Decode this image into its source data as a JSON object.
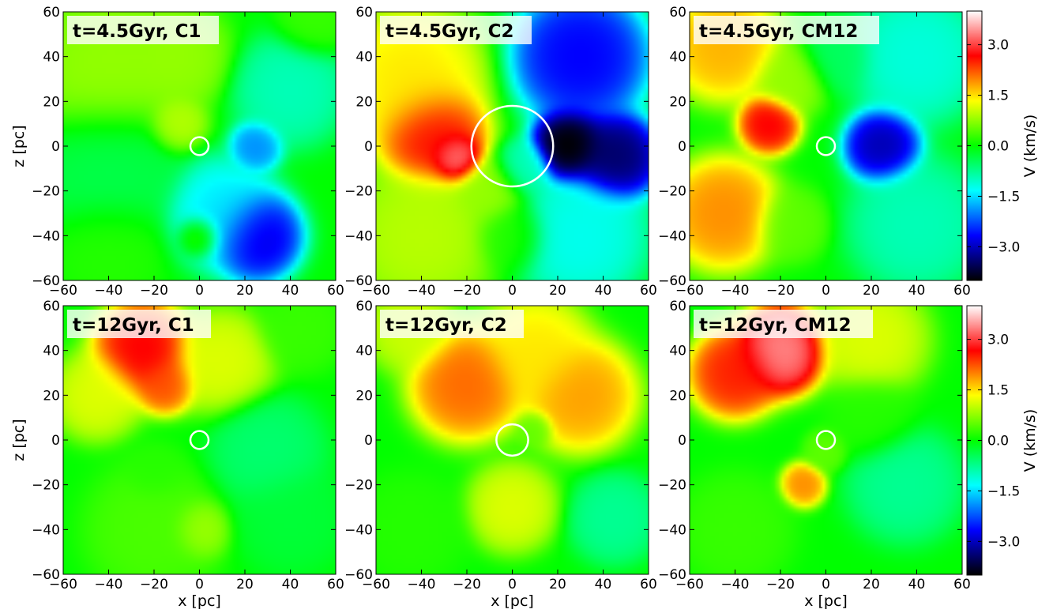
{
  "chart_data": [
    {
      "type": "heatmap",
      "title": "t=4.5Gyr, C1",
      "xlabel": "",
      "ylabel": "z [pc]",
      "xlim": [
        -60,
        60
      ],
      "ylim": [
        -60,
        60
      ],
      "x_ticks": [
        -60,
        -40,
        -20,
        0,
        20,
        40,
        60
      ],
      "y_ticks": [
        -60,
        -40,
        -20,
        0,
        20,
        40,
        60
      ],
      "circle": {
        "x": 0,
        "z": 0,
        "r": 4
      },
      "blobs": [
        {
          "x": -40,
          "z": 35,
          "v": 0.8,
          "s": 22
        },
        {
          "x": -10,
          "z": 40,
          "v": 0.8,
          "s": 14
        },
        {
          "x": -10,
          "z": 10,
          "v": 1.0,
          "s": 8
        },
        {
          "x": -40,
          "z": -10,
          "v": -0.4,
          "s": 20
        },
        {
          "x": 40,
          "z": 25,
          "v": -1.0,
          "s": 15
        },
        {
          "x": 25,
          "z": 0,
          "v": -2.0,
          "s": 7
        },
        {
          "x": 25,
          "z": -40,
          "v": -3.0,
          "s": 12
        },
        {
          "x": 10,
          "z": -30,
          "v": -1.5,
          "s": 15
        },
        {
          "x": 0,
          "z": -40,
          "v": 0.6,
          "s": 6
        },
        {
          "x": 50,
          "z": 55,
          "v": 0.3,
          "s": 10
        },
        {
          "x": -40,
          "z": -45,
          "v": 0.2,
          "s": 15
        }
      ]
    },
    {
      "type": "heatmap",
      "title": "t=4.5Gyr, C2",
      "xlabel": "",
      "ylabel": "",
      "xlim": [
        -60,
        60
      ],
      "ylim": [
        -60,
        60
      ],
      "x_ticks": [
        -60,
        -40,
        -20,
        0,
        20,
        40,
        60
      ],
      "y_ticks": [
        -60,
        -40,
        -20,
        0,
        20,
        40,
        60
      ],
      "circle": {
        "x": 0,
        "z": 0,
        "r": 18
      },
      "blobs": [
        {
          "x": -45,
          "z": 30,
          "v": 1.5,
          "s": 20
        },
        {
          "x": -35,
          "z": 5,
          "v": 2.8,
          "s": 14
        },
        {
          "x": -25,
          "z": -5,
          "v": 3.5,
          "s": 7
        },
        {
          "x": -40,
          "z": -40,
          "v": 1.0,
          "s": 20
        },
        {
          "x": -10,
          "z": -20,
          "v": 0.8,
          "s": 10
        },
        {
          "x": 0,
          "z": -40,
          "v": 0.2,
          "s": 10
        },
        {
          "x": 30,
          "z": 40,
          "v": -2.8,
          "s": 18
        },
        {
          "x": 25,
          "z": 0,
          "v": -4.2,
          "s": 10
        },
        {
          "x": 45,
          "z": -5,
          "v": -3.6,
          "s": 12
        },
        {
          "x": 30,
          "z": -40,
          "v": -1.3,
          "s": 18
        },
        {
          "x": 5,
          "z": -10,
          "v": -1.0,
          "s": 8
        }
      ]
    },
    {
      "type": "heatmap",
      "title": "t=4.5Gyr, CM12",
      "xlabel": "",
      "ylabel": "",
      "xlim": [
        -60,
        60
      ],
      "ylim": [
        -60,
        60
      ],
      "x_ticks": [
        -60,
        -40,
        -20,
        0,
        20,
        40,
        60
      ],
      "y_ticks": [
        -60,
        -40,
        -20,
        0,
        20,
        40,
        60
      ],
      "circle": {
        "x": 0,
        "z": 0,
        "r": 4
      },
      "blobs": [
        {
          "x": -45,
          "z": 45,
          "v": 1.8,
          "s": 15
        },
        {
          "x": -25,
          "z": 10,
          "v": 2.8,
          "s": 8
        },
        {
          "x": -45,
          "z": -30,
          "v": 2.0,
          "s": 15
        },
        {
          "x": -15,
          "z": 30,
          "v": 0.8,
          "s": 10
        },
        {
          "x": 25,
          "z": 0,
          "v": -3.2,
          "s": 10
        },
        {
          "x": 40,
          "z": 40,
          "v": -1.2,
          "s": 18
        },
        {
          "x": 40,
          "z": -35,
          "v": -1.0,
          "s": 18
        },
        {
          "x": -15,
          "z": -35,
          "v": 0.5,
          "s": 10
        },
        {
          "x": 5,
          "z": 40,
          "v": -0.5,
          "s": 10
        }
      ]
    },
    {
      "type": "heatmap",
      "title": "t=12Gyr, C1",
      "xlabel": "x [pc]",
      "ylabel": "z [pc]",
      "xlim": [
        -60,
        60
      ],
      "ylim": [
        -60,
        60
      ],
      "x_ticks": [
        -60,
        -40,
        -20,
        0,
        20,
        40,
        60
      ],
      "y_ticks": [
        -60,
        -40,
        -20,
        0,
        20,
        40,
        60
      ],
      "circle": {
        "x": 0,
        "z": 0,
        "r": 4
      },
      "blobs": [
        {
          "x": -25,
          "z": 40,
          "v": 2.8,
          "s": 13
        },
        {
          "x": -15,
          "z": 25,
          "v": 2.3,
          "s": 8
        },
        {
          "x": -45,
          "z": 20,
          "v": 1.2,
          "s": 12
        },
        {
          "x": 10,
          "z": 35,
          "v": 1.2,
          "s": 14
        },
        {
          "x": 30,
          "z": -5,
          "v": -0.6,
          "s": 15
        },
        {
          "x": 40,
          "z": -35,
          "v": -0.3,
          "s": 15
        },
        {
          "x": -20,
          "z": -40,
          "v": 0.4,
          "s": 18
        },
        {
          "x": 0,
          "z": -40,
          "v": 0.9,
          "s": 8
        },
        {
          "x": -20,
          "z": -15,
          "v": 0.2,
          "s": 8
        },
        {
          "x": 45,
          "z": 50,
          "v": 0.3,
          "s": 12
        }
      ]
    },
    {
      "type": "heatmap",
      "title": "t=12Gyr, C2",
      "xlabel": "x [pc]",
      "ylabel": "",
      "xlim": [
        -60,
        60
      ],
      "ylim": [
        -60,
        60
      ],
      "x_ticks": [
        -60,
        -40,
        -20,
        0,
        20,
        40,
        60
      ],
      "y_ticks": [
        -60,
        -40,
        -20,
        0,
        20,
        40,
        60
      ],
      "circle": {
        "x": 0,
        "z": 0,
        "r": 7
      },
      "blobs": [
        {
          "x": -20,
          "z": 25,
          "v": 2.2,
          "s": 15
        },
        {
          "x": 30,
          "z": 20,
          "v": 1.9,
          "s": 15
        },
        {
          "x": 10,
          "z": 40,
          "v": 1.5,
          "s": 15
        },
        {
          "x": -45,
          "z": -40,
          "v": 0.2,
          "s": 15
        },
        {
          "x": 45,
          "z": -35,
          "v": -0.8,
          "s": 12
        },
        {
          "x": 10,
          "z": 5,
          "v": 0.5,
          "s": 5
        },
        {
          "x": 0,
          "z": -30,
          "v": 1.2,
          "s": 12
        },
        {
          "x": -45,
          "z": 50,
          "v": 1.1,
          "s": 12
        }
      ]
    },
    {
      "type": "heatmap",
      "title": "t=12Gyr, CM12",
      "xlabel": "x [pc]",
      "ylabel": "",
      "xlim": [
        -60,
        60
      ],
      "ylim": [
        -60,
        60
      ],
      "x_ticks": [
        -60,
        -40,
        -20,
        0,
        20,
        40,
        60
      ],
      "y_ticks": [
        -60,
        -40,
        -20,
        0,
        20,
        40,
        60
      ],
      "circle": {
        "x": 0,
        "z": 0,
        "r": 4
      },
      "blobs": [
        {
          "x": -20,
          "z": 40,
          "v": 3.5,
          "s": 12
        },
        {
          "x": -40,
          "z": 30,
          "v": 2.6,
          "s": 12
        },
        {
          "x": -10,
          "z": -20,
          "v": 2.0,
          "s": 6
        },
        {
          "x": 35,
          "z": -20,
          "v": -0.8,
          "s": 15
        },
        {
          "x": 20,
          "z": 10,
          "v": 0.2,
          "s": 12
        },
        {
          "x": -40,
          "z": -40,
          "v": 0.3,
          "s": 15
        },
        {
          "x": 20,
          "z": 45,
          "v": 1.2,
          "s": 15
        },
        {
          "x": 0,
          "z": -5,
          "v": 0.5,
          "s": 6
        }
      ]
    }
  ],
  "colorbar": {
    "label": "V (km/s)",
    "ticks": [
      3.0,
      1.5,
      0.0,
      -1.5,
      -3.0
    ],
    "tick_labels": [
      "3.0",
      "1.5",
      "0.0",
      "−1.5",
      "−3.0"
    ],
    "vmin": -4.0,
    "vmax": 4.0,
    "colormap": [
      "#000000",
      "#0000ff",
      "#00ffff",
      "#00ff00",
      "#ffff00",
      "#ff0000",
      "#ffffff"
    ]
  }
}
